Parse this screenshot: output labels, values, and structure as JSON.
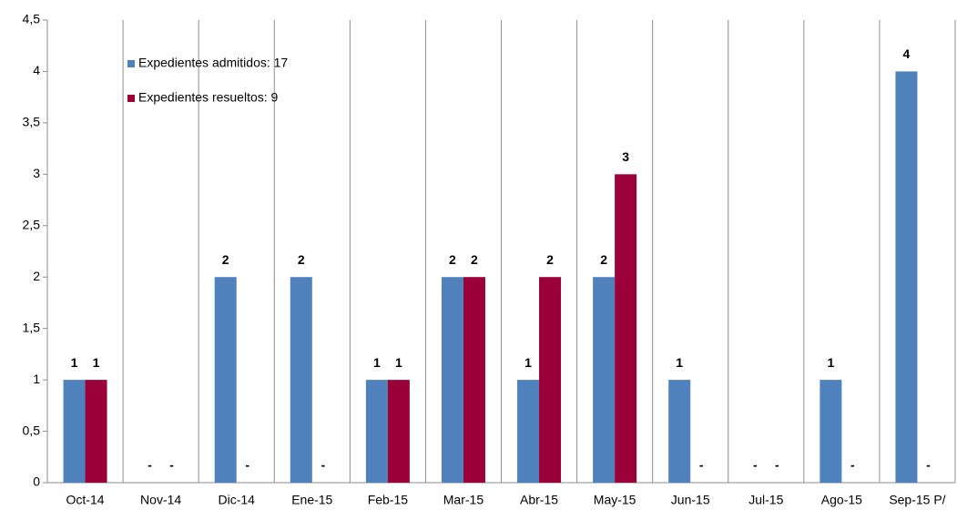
{
  "chart_data": {
    "type": "bar",
    "categories": [
      "Oct-14",
      "Nov-14",
      "Dic-14",
      "Ene-15",
      "Feb-15",
      "Mar-15",
      "Abr-15",
      "May-15",
      "Jun-15",
      "Jul-15",
      "Ago-15",
      "Sep-15 P/"
    ],
    "series": [
      {
        "name": "Expedientes admitidos: 17",
        "color": "#4f81bd",
        "values": [
          1,
          0,
          2,
          2,
          1,
          2,
          1,
          2,
          1,
          0,
          1,
          4
        ],
        "value_labels": [
          "1",
          "-",
          "2",
          "2",
          "1",
          "2",
          "1",
          "2",
          "1",
          "-",
          "1",
          "4"
        ]
      },
      {
        "name": "Expedientes resueltos: 9",
        "color": "#9b0038",
        "values": [
          1,
          0,
          0,
          0,
          1,
          2,
          2,
          3,
          0,
          0,
          0,
          0
        ],
        "value_labels": [
          "1",
          "-",
          "-",
          "-",
          "1",
          "2",
          "2",
          "3",
          "-",
          "-",
          "-",
          "-"
        ]
      }
    ],
    "ylim": [
      0,
      4.5
    ],
    "yticks": [
      0,
      {
        "value": 0.5,
        "label": "0,5"
      },
      1,
      {
        "value": 1.5,
        "label": "1,5"
      },
      2,
      {
        "value": 2.5,
        "label": "2,5"
      },
      3,
      {
        "value": 3.5,
        "label": "3,5"
      },
      4,
      {
        "value": 4.5,
        "label": "4,5"
      }
    ]
  }
}
